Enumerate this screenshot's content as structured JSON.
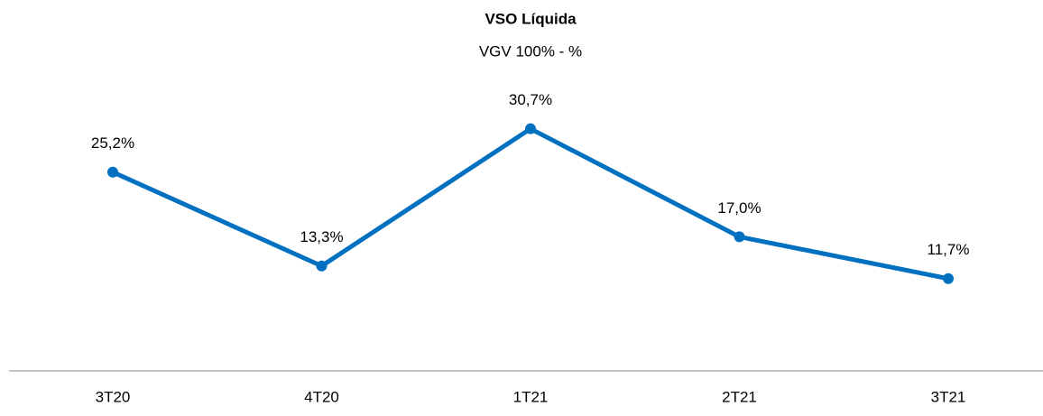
{
  "chart_data": {
    "type": "line",
    "title": "VSO Líquida",
    "subtitle": "VGV 100% - %",
    "categories": [
      "3T20",
      "4T20",
      "1T21",
      "2T21",
      "3T21"
    ],
    "series": [
      {
        "name": null,
        "color": "#0070c0",
        "values": [
          25.2,
          13.3,
          30.7,
          17.0,
          11.7
        ],
        "value_labels": [
          "25,2%",
          "13,3%",
          "30,7%",
          "17,0%",
          "11,7%"
        ]
      }
    ]
  }
}
